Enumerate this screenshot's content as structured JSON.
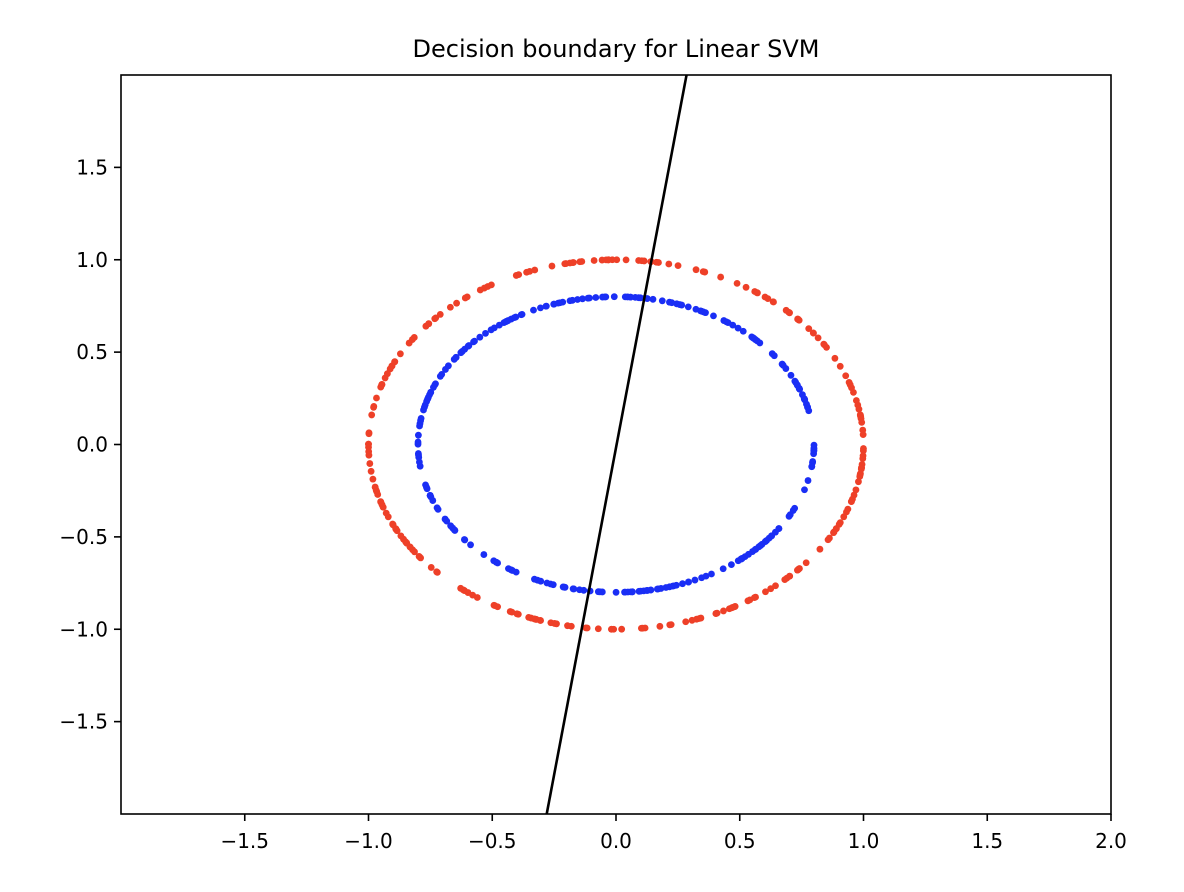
{
  "chart_data": {
    "type": "scatter",
    "title": "Decision boundary for Linear SVM",
    "xlabel": "",
    "ylabel": "",
    "xlim": [
      -2.0,
      2.0
    ],
    "ylim": [
      -2.0,
      2.0
    ],
    "x_ticks": [
      -1.5,
      -1.0,
      -0.5,
      0.0,
      0.5,
      1.0,
      1.5,
      2.0
    ],
    "x_tick_labels": [
      "−1.5",
      "−1.0",
      "−0.5",
      "0.0",
      "0.5",
      "1.0",
      "1.5",
      "2.0"
    ],
    "y_ticks": [
      1.5,
      1.0,
      0.5,
      0.0,
      -0.5,
      -1.0,
      -1.5
    ],
    "y_tick_labels": [
      "1.5",
      "1.0",
      "0.5",
      "0.0",
      "−0.5",
      "−1.0",
      "−1.5"
    ],
    "grid": false,
    "series": [
      {
        "kind": "scatter",
        "shape": "circle",
        "radius": 1.0,
        "point_count": 250,
        "color": "#ee4028"
      },
      {
        "kind": "scatter",
        "shape": "circle",
        "radius": 0.8,
        "point_count": 250,
        "color": "#1a2ef5"
      },
      {
        "kind": "line",
        "color": "#000000",
        "x": [
          -0.28,
          0.285
        ],
        "y": [
          -2.0,
          2.0
        ]
      }
    ]
  }
}
